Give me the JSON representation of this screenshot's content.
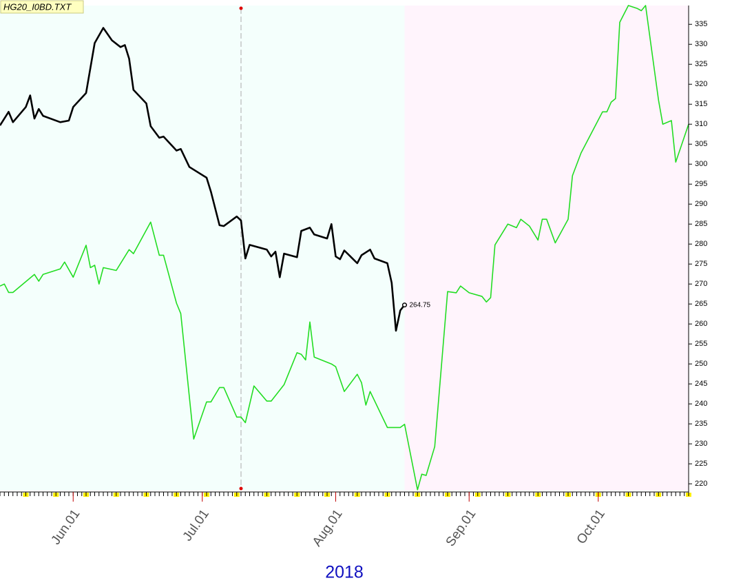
{
  "chart_data": {
    "type": "line",
    "title": "HG20_I0BD.TXT",
    "xlabel": "2018",
    "xlim": [
      "2018-05-15",
      "2018-10-22"
    ],
    "xticks": [
      {
        "value": "2018-06-01",
        "label": "Jun.01"
      },
      {
        "value": "2018-07-01",
        "label": "Jul.01"
      },
      {
        "value": "2018-08-01",
        "label": "Aug.01"
      },
      {
        "value": "2018-09-01",
        "label": "Sep.01"
      },
      {
        "value": "2018-10-01",
        "label": "Oct.01"
      }
    ],
    "ylim": [
      218.3,
      339.7
    ],
    "yticks": [
      220,
      225,
      230,
      235,
      240,
      245,
      250,
      255,
      260,
      265,
      270,
      275,
      280,
      285,
      290,
      295,
      300,
      305,
      310,
      315,
      320,
      325,
      330,
      335
    ],
    "bands": [
      {
        "start": "2018-05-15",
        "end": "2018-08-17",
        "color": "#f4fffc"
      },
      {
        "start": "2018-08-17",
        "end": "2018-10-22",
        "color": "#fff4fc"
      }
    ],
    "vline": "2018-07-10",
    "series": [
      {
        "color": "#000000",
        "label_last": true,
        "x": [
          "2018-05-15",
          "2018-05-17",
          "2018-05-18",
          "2018-05-21",
          "2018-05-22",
          "2018-05-23",
          "2018-05-24",
          "2018-05-25",
          "2018-05-29",
          "2018-05-31",
          "2018-06-01",
          "2018-06-04",
          "2018-06-06",
          "2018-06-08",
          "2018-06-10",
          "2018-06-12",
          "2018-06-13",
          "2018-06-14",
          "2018-06-15",
          "2018-06-18",
          "2018-06-19",
          "2018-06-21",
          "2018-06-22",
          "2018-06-25",
          "2018-06-26",
          "2018-06-28",
          "2018-07-02",
          "2018-07-03",
          "2018-07-05",
          "2018-07-06",
          "2018-07-09",
          "2018-07-10",
          "2018-07-11",
          "2018-07-12",
          "2018-07-16",
          "2018-07-17",
          "2018-07-18",
          "2018-07-19",
          "2018-07-20",
          "2018-07-23",
          "2018-07-24",
          "2018-07-26",
          "2018-07-27",
          "2018-07-30",
          "2018-07-31",
          "2018-08-01",
          "2018-08-02",
          "2018-08-03",
          "2018-08-06",
          "2018-08-07",
          "2018-08-09",
          "2018-08-10",
          "2018-08-13",
          "2018-08-14",
          "2018-08-15",
          "2018-08-16",
          "2018-08-17"
        ],
        "values": [
          309.7,
          313.1,
          310.5,
          314.3,
          317.2,
          311.4,
          313.8,
          312.1,
          310.5,
          310.9,
          314.3,
          317.8,
          330.3,
          334.1,
          331,
          329.3,
          329.8,
          326.4,
          318.6,
          315.2,
          309.5,
          306.6,
          306.9,
          303.4,
          303.8,
          299.3,
          296.6,
          293.1,
          284.7,
          284.5,
          286.9,
          285.9,
          276.4,
          279.8,
          278.6,
          276.9,
          278.1,
          271.7,
          277.6,
          276.7,
          283.3,
          284.1,
          282.4,
          281.4,
          285,
          276.9,
          276.2,
          278.4,
          275.2,
          277.2,
          278.6,
          276.4,
          275.2,
          270.3,
          258.3,
          263.4,
          264.75
        ]
      },
      {
        "color": "#22dd22",
        "x": [
          "2018-05-15",
          "2018-05-16",
          "2018-05-17",
          "2018-05-18",
          "2018-05-23",
          "2018-05-24",
          "2018-05-25",
          "2018-05-29",
          "2018-05-30",
          "2018-06-01",
          "2018-06-04",
          "2018-06-05",
          "2018-06-06",
          "2018-06-07",
          "2018-06-08",
          "2018-06-11",
          "2018-06-14",
          "2018-06-15",
          "2018-06-19",
          "2018-06-21",
          "2018-06-22",
          "2018-06-25",
          "2018-06-26",
          "2018-06-29",
          "2018-07-02",
          "2018-07-03",
          "2018-07-05",
          "2018-07-06",
          "2018-07-09",
          "2018-07-10",
          "2018-07-11",
          "2018-07-13",
          "2018-07-16",
          "2018-07-17",
          "2018-07-20",
          "2018-07-23",
          "2018-07-24",
          "2018-07-25",
          "2018-07-26",
          "2018-07-27",
          "2018-07-31",
          "2018-08-01",
          "2018-08-03",
          "2018-08-06",
          "2018-08-07",
          "2018-08-08",
          "2018-08-09",
          "2018-08-13",
          "2018-08-16",
          "2018-08-17",
          "2018-08-20",
          "2018-08-21",
          "2018-08-22",
          "2018-08-24",
          "2018-08-27",
          "2018-08-29",
          "2018-08-30",
          "2018-09-01",
          "2018-09-04",
          "2018-09-05",
          "2018-09-06",
          "2018-09-07",
          "2018-09-10",
          "2018-09-12",
          "2018-09-13",
          "2018-09-15",
          "2018-09-17",
          "2018-09-18",
          "2018-09-19",
          "2018-09-21",
          "2018-09-24",
          "2018-09-25",
          "2018-09-27",
          "2018-10-02",
          "2018-10-03",
          "2018-10-04",
          "2018-10-05",
          "2018-10-06",
          "2018-10-08",
          "2018-10-10",
          "2018-10-11",
          "2018-10-12",
          "2018-10-15",
          "2018-10-16",
          "2018-10-18",
          "2018-10-19",
          "2018-10-22"
        ],
        "values": [
          269.5,
          270,
          267.9,
          267.9,
          272.4,
          270.7,
          272.4,
          273.8,
          275.5,
          271.7,
          279.7,
          274.1,
          274.7,
          270,
          274.1,
          273.4,
          278.6,
          277.6,
          285.5,
          277.2,
          277.2,
          265.2,
          262.6,
          231.2,
          240.5,
          240.5,
          244.1,
          244.1,
          236.7,
          236.7,
          235.3,
          244.5,
          240.7,
          240.7,
          244.8,
          252.8,
          252.4,
          251,
          260.5,
          251.7,
          250,
          249.3,
          243.1,
          247.4,
          245.3,
          239.7,
          243.1,
          234.1,
          234.1,
          234.9,
          218.5,
          222.4,
          222.1,
          229.3,
          268.1,
          267.8,
          269.5,
          267.8,
          266.9,
          265.5,
          266.6,
          279.8,
          285,
          284.1,
          286.2,
          284.5,
          281,
          286.2,
          286.2,
          280.3,
          286.2,
          297.1,
          302.8,
          313.1,
          313.1,
          315.5,
          316.4,
          335.5,
          339.7,
          339,
          338.4,
          339.7,
          316,
          310,
          310.9,
          300.5,
          310
        ]
      }
    ]
  }
}
